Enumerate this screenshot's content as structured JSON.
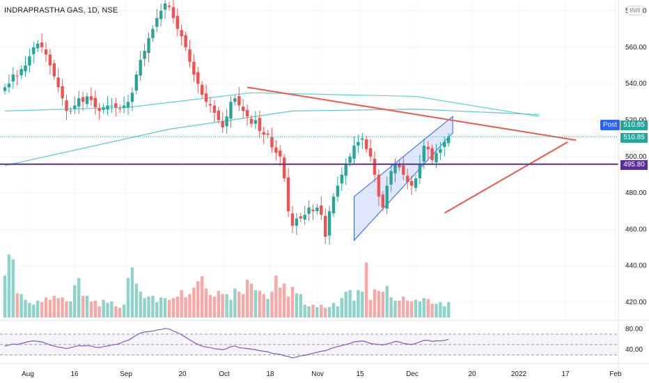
{
  "header": {
    "title": "INDRAPRASTHA GAS, 1D, NSE",
    "currency": "INR"
  },
  "price_axis": {
    "ticks": [
      "580.00",
      "560.00",
      "540.00",
      "520.00",
      "500.00",
      "480.00",
      "460.00",
      "440.00",
      "420.00"
    ]
  },
  "rsi_axis": {
    "ticks": [
      "80.00",
      "40.00"
    ]
  },
  "time_axis": {
    "labels": [
      "Aug",
      "16",
      "Sep",
      "20",
      "Oct",
      "18",
      "Nov",
      "15",
      "Dec",
      "20",
      "2022",
      "17",
      "Feb"
    ]
  },
  "badges": {
    "post_label": "Post",
    "last_price_1": "510.85",
    "last_price_2": "510.85",
    "level_price": "495.80"
  },
  "colors": {
    "up": "#26a69a",
    "down": "#ef5350",
    "up_volume": "#8ed3c9",
    "down_volume": "#f7a9a7",
    "ma_short": "#5ad0d6",
    "ma_long": "#56c7d3",
    "trendline": "#f2554a",
    "horizontal_level": "#5b2c9e",
    "channel": "#2962ff",
    "rsi_line": "#7e57c2",
    "post_badge": "#2962ff"
  },
  "chart_data": {
    "type": "candlestick",
    "symbol": "INDRAPRASTHA GAS",
    "interval": "1D",
    "exchange": "NSE",
    "ylim": [
      412,
      584
    ],
    "horizontal_level": 495.8,
    "last_price": 510.85,
    "close_series": [
      538,
      540,
      545,
      544,
      548,
      550,
      555,
      560,
      562,
      560,
      556,
      550,
      544,
      538,
      532,
      525,
      525,
      528,
      532,
      530,
      533,
      531,
      527,
      525,
      527,
      528,
      528,
      527,
      526,
      528,
      530,
      535,
      545,
      553,
      558,
      565,
      570,
      576,
      580,
      584,
      582,
      576,
      570,
      566,
      560,
      552,
      545,
      540,
      534,
      530,
      528,
      524,
      520,
      516,
      522,
      530,
      532,
      528,
      525,
      522,
      518,
      520,
      514,
      512,
      512,
      505,
      502,
      500,
      488,
      470,
      462,
      466,
      466,
      468,
      472,
      470,
      472,
      468,
      456,
      470,
      478,
      484,
      490,
      496,
      500,
      506,
      508,
      510,
      504,
      500,
      490,
      478,
      472,
      484,
      492,
      496,
      494,
      490,
      486,
      484,
      488,
      496,
      506,
      504,
      498,
      502,
      504,
      508,
      510.85
    ],
    "volume_relative": [
      0.52,
      0.78,
      0.72,
      0.3,
      0.29,
      0.22,
      0.18,
      0.16,
      0.21,
      0.19,
      0.25,
      0.22,
      0.27,
      0.24,
      0.25,
      0.2,
      0.2,
      0.4,
      0.49,
      0.27,
      0.27,
      0.2,
      0.21,
      0.14,
      0.22,
      0.18,
      0.2,
      0.14,
      0.12,
      0.16,
      0.49,
      0.62,
      0.42,
      0.32,
      0.24,
      0.26,
      0.27,
      0.19,
      0.25,
      0.24,
      0.22,
      0.24,
      0.26,
      0.34,
      0.25,
      0.29,
      0.37,
      0.45,
      0.51,
      0.36,
      0.28,
      0.26,
      0.33,
      0.29,
      0.29,
      0.22,
      0.36,
      0.32,
      0.29,
      0.47,
      0.42,
      0.34,
      0.33,
      0.29,
      0.23,
      0.32,
      0.52,
      0.37,
      0.42,
      0.26,
      0.38,
      0.3,
      0.29,
      0.16,
      0.14,
      0.16,
      0.13,
      0.16,
      0.12,
      0.13,
      0.18,
      0.14,
      0.24,
      0.32,
      0.34,
      0.21,
      0.34,
      0.32,
      0.68,
      0.22,
      0.35,
      0.33,
      0.32,
      0.39,
      0.25,
      0.21,
      0.21,
      0.26,
      0.21,
      0.2,
      0.22,
      0.2,
      0.24,
      0.23,
      0.17,
      0.17,
      0.19,
      0.14,
      0.19
    ],
    "overlays": {
      "ma_short": [
        [
          0,
          525
        ],
        [
          30,
          527
        ],
        [
          60,
          535
        ],
        [
          100,
          533
        ],
        [
          130,
          522
        ]
      ],
      "ma_long": [
        [
          0,
          495
        ],
        [
          40,
          515
        ],
        [
          70,
          525
        ],
        [
          100,
          526
        ],
        [
          130,
          523
        ]
      ],
      "resistance_line": [
        [
          59,
          538
        ],
        [
          139,
          509
        ]
      ],
      "support_line": [
        [
          107,
          469
        ],
        [
          137,
          508
        ]
      ],
      "channel_lower": [
        [
          85,
          454
        ],
        [
          109,
          513
        ]
      ],
      "channel_upper": [
        [
          85,
          478
        ],
        [
          109,
          522
        ]
      ]
    },
    "rsi": {
      "ylim": [
        20,
        90
      ],
      "levels": [
        70,
        50,
        30
      ],
      "values": [
        47,
        49,
        51,
        50,
        52,
        54,
        56,
        57,
        56,
        55,
        52,
        49,
        47,
        45,
        44,
        42,
        44,
        46,
        48,
        47,
        48,
        47,
        45,
        44,
        46,
        47,
        49,
        50,
        52,
        56,
        58,
        63,
        68,
        72,
        74,
        75,
        76,
        78,
        79,
        81,
        80,
        76,
        73,
        69,
        64,
        59,
        54,
        50,
        47,
        45,
        44,
        42,
        41,
        40,
        42,
        46,
        47,
        44,
        43,
        42,
        41,
        40,
        38,
        37,
        36,
        33,
        32,
        31,
        28,
        27,
        24,
        26,
        28,
        29,
        31,
        33,
        35,
        37,
        38,
        41,
        44,
        46,
        48,
        50,
        52,
        55,
        56,
        57,
        55,
        52,
        51,
        50,
        49,
        51,
        53,
        56,
        55,
        52,
        51,
        50,
        52,
        55,
        58,
        58,
        56,
        57,
        57,
        58,
        60
      ]
    },
    "x_labels": [
      "Aug",
      "16",
      "Sep",
      "20",
      "Oct",
      "18",
      "Nov",
      "15",
      "Dec",
      "20",
      "2022",
      "17",
      "Feb"
    ]
  }
}
